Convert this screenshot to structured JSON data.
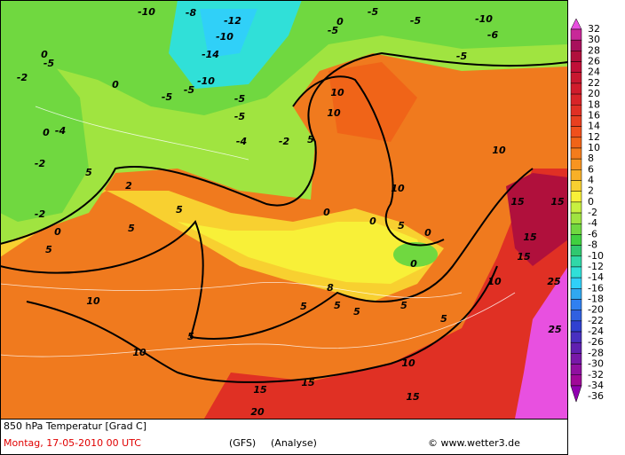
{
  "map": {
    "footer": {
      "title": "850 hPa Temperatur [Grad C]",
      "date": "Montag, 17-05-2010  00 UTC",
      "model": "(GFS)",
      "analysis": "(Analyse)",
      "copyright": "© www.wetter3.de"
    },
    "legend": {
      "ticks": [
        "32",
        "30",
        "28",
        "26",
        "24",
        "22",
        "20",
        "18",
        "16",
        "14",
        "12",
        "10",
        "8",
        "6",
        "4",
        "2",
        "0",
        "-2",
        "-4",
        "-6",
        "-8",
        "-10",
        "-12",
        "-14",
        "-16",
        "-18",
        "-20",
        "-22",
        "-24",
        "-26",
        "-28",
        "-30",
        "-32",
        "-34",
        "-36"
      ],
      "colors": [
        "#e850e0",
        "#c82898",
        "#a8105c",
        "#b0103c",
        "#c01038",
        "#c81830",
        "#d01c2c",
        "#d82428",
        "#e03024",
        "#e84020",
        "#f0501c",
        "#f06418",
        "#f47c1c",
        "#f89420",
        "#f8b028",
        "#f8d030",
        "#f8f038",
        "#c8f040",
        "#a0e440",
        "#70d840",
        "#40d040",
        "#30c870",
        "#30d8a8",
        "#30e0d8",
        "#30d0f8",
        "#30a8f0",
        "#3080f0",
        "#3060e0",
        "#3040d0",
        "#4830c0",
        "#6020b0",
        "#7818a8",
        "#9010a0",
        "#a00898",
        "#9000b0"
      ]
    },
    "contour_labels": [
      "-10",
      "-12",
      "-10",
      "-14",
      "-10",
      "-5",
      "-5",
      "-5",
      "-5",
      "-4",
      "-2",
      "-8",
      "-5",
      "0",
      "-5",
      "-5",
      "-10",
      "-5",
      "0",
      "-5",
      "0",
      "-2",
      "-4",
      "0",
      "-2",
      "-2",
      "0",
      "5",
      "5",
      "5",
      "5",
      "2",
      "10",
      "10",
      "5",
      "0",
      "0",
      "5",
      "0",
      "0",
      "8",
      "5",
      "5",
      "5",
      "5",
      "10",
      "10",
      "5",
      "5",
      "10",
      "10",
      "15",
      "15",
      "15",
      "15",
      "25",
      "25",
      "15",
      "15",
      "20",
      "15",
      "10",
      "10",
      "-6"
    ]
  }
}
